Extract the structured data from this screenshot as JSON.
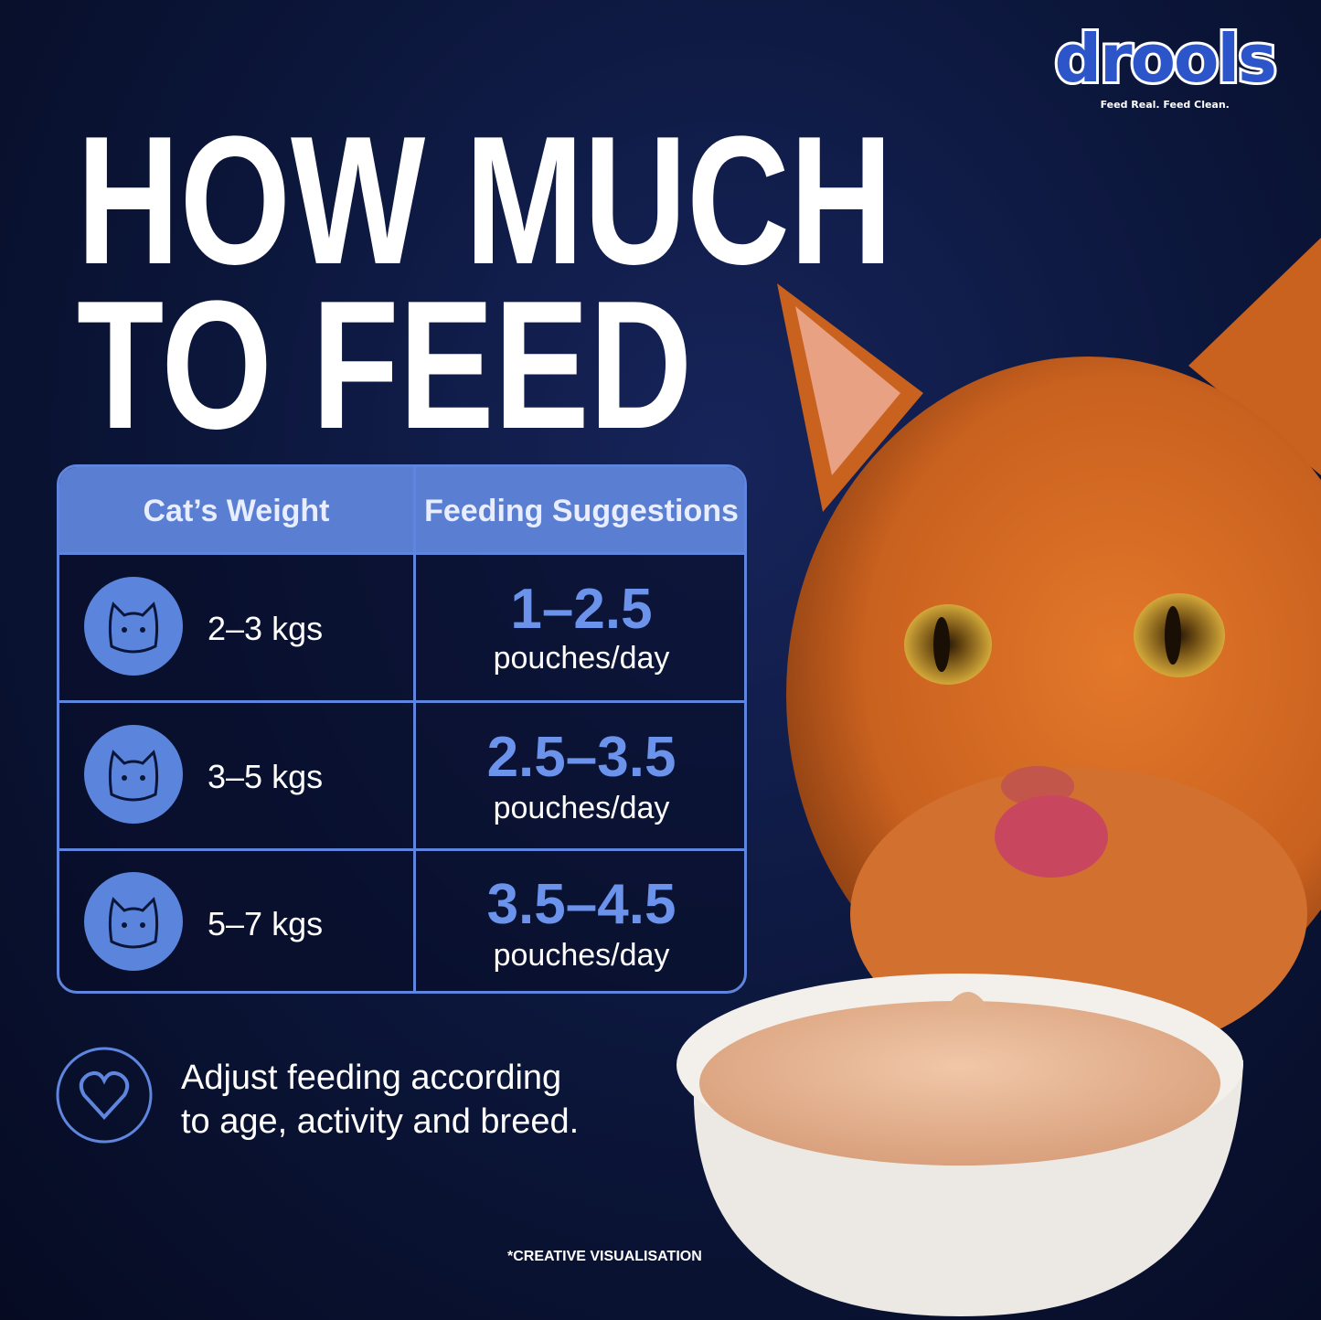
{
  "brand": {
    "name": "drools",
    "tagline": "Feed Real. Feed Clean."
  },
  "title": [
    "HOW MUCH",
    "TO FEED"
  ],
  "table": {
    "headers": [
      "Cat’s Weight",
      "Feeding Suggestions"
    ],
    "rows": [
      {
        "weight": "2–3 kgs",
        "amount": "1–2.5",
        "unit": "pouches/day"
      },
      {
        "weight": "3–5 kgs",
        "amount": "2.5–3.5",
        "unit": "pouches/day"
      },
      {
        "weight": "5–7 kgs",
        "amount": "3.5–4.5",
        "unit": "pouches/day"
      }
    ]
  },
  "note": [
    "Adjust feeding according",
    "to age, activity and breed."
  ],
  "footnote": "*CREATIVE VISUALISATION"
}
